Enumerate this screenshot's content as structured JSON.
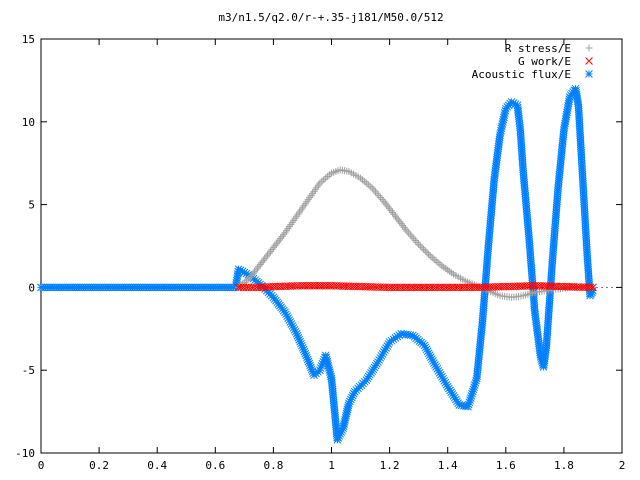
{
  "chart_data": {
    "type": "scatter",
    "title": "m3/n1.5/q2.0/r-+.35-j181/M50.0/512",
    "xlabel": "",
    "ylabel": "",
    "xlim": [
      0,
      2
    ],
    "ylim": [
      -10,
      15
    ],
    "x_ticks": [
      "0",
      "0.2",
      "0.4",
      "0.6",
      "0.8",
      "1",
      "1.2",
      "1.4",
      "1.6",
      "1.8",
      "2"
    ],
    "y_ticks": [
      "-10",
      "-5",
      "0",
      "5",
      "10",
      "15"
    ],
    "grid": false,
    "legend_position": "top-right",
    "series": [
      {
        "name": "R stress/E",
        "marker": "+",
        "color": "#a0a0a0",
        "x": [
          0.68,
          0.72,
          0.76,
          0.8,
          0.84,
          0.88,
          0.92,
          0.96,
          1.0,
          1.03,
          1.06,
          1.1,
          1.14,
          1.18,
          1.22,
          1.26,
          1.3,
          1.34,
          1.38,
          1.42,
          1.46,
          1.5,
          1.54,
          1.58,
          1.62,
          1.66,
          1.7,
          1.74,
          1.78,
          1.82,
          1.86,
          1.9
        ],
        "y": [
          0.0,
          0.6,
          1.5,
          2.4,
          3.3,
          4.3,
          5.3,
          6.3,
          6.9,
          7.1,
          7.0,
          6.6,
          6.0,
          5.2,
          4.3,
          3.4,
          2.6,
          1.9,
          1.3,
          0.8,
          0.4,
          0.1,
          -0.2,
          -0.5,
          -0.6,
          -0.5,
          -0.3,
          -0.2,
          -0.1,
          0.0,
          0.0,
          0.0
        ]
      },
      {
        "name": "G work/E",
        "marker": "x",
        "color": "#ff0000",
        "x": [
          0.68,
          0.75,
          0.8,
          0.9,
          1.0,
          1.1,
          1.2,
          1.3,
          1.4,
          1.5,
          1.6,
          1.7,
          1.8,
          1.9
        ],
        "y": [
          0.0,
          0.0,
          0.05,
          0.1,
          0.1,
          0.05,
          0.0,
          0.0,
          0.0,
          0.0,
          0.05,
          0.1,
          0.05,
          0.0
        ]
      },
      {
        "name": "Acoustic flux/E",
        "marker": "*",
        "color": "#0080ff",
        "x": [
          0.0,
          0.1,
          0.2,
          0.3,
          0.4,
          0.5,
          0.6,
          0.67,
          0.68,
          0.72,
          0.76,
          0.8,
          0.84,
          0.88,
          0.91,
          0.94,
          0.96,
          0.98,
          1.0,
          1.02,
          1.04,
          1.06,
          1.08,
          1.12,
          1.16,
          1.2,
          1.24,
          1.28,
          1.32,
          1.36,
          1.4,
          1.44,
          1.47,
          1.5,
          1.52,
          1.54,
          1.56,
          1.58,
          1.6,
          1.62,
          1.64,
          1.65,
          1.66,
          1.68,
          1.7,
          1.72,
          1.73,
          1.74,
          1.76,
          1.78,
          1.8,
          1.82,
          1.84,
          1.85,
          1.86,
          1.88,
          1.89,
          1.9
        ],
        "y": [
          0.0,
          0.0,
          0.0,
          0.0,
          0.0,
          0.0,
          0.0,
          0.0,
          1.1,
          0.7,
          0.1,
          -0.6,
          -1.5,
          -2.8,
          -4.0,
          -5.3,
          -5.0,
          -4.1,
          -5.5,
          -9.2,
          -8.5,
          -7.0,
          -6.3,
          -5.6,
          -4.5,
          -3.3,
          -2.8,
          -2.9,
          -3.5,
          -4.8,
          -6.0,
          -7.1,
          -7.2,
          -5.5,
          -2.0,
          2.5,
          6.5,
          9.2,
          10.8,
          11.2,
          11.0,
          9.5,
          7.0,
          3.0,
          -1.5,
          -4.2,
          -4.8,
          -3.5,
          1.5,
          6.0,
          9.5,
          11.5,
          12.0,
          11.0,
          8.0,
          2.0,
          -0.5,
          -0.2
        ]
      }
    ]
  }
}
